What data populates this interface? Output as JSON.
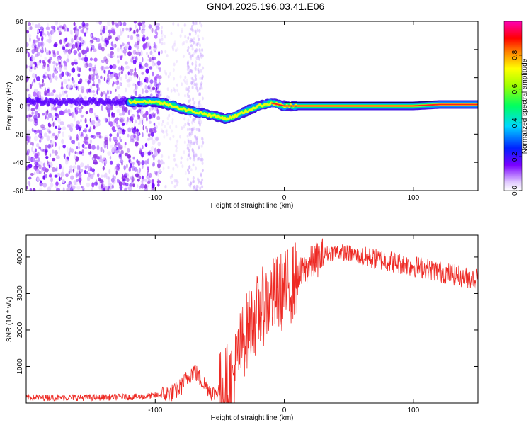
{
  "figure": {
    "title": "GN04.2025.196.03.41.E06"
  },
  "colors": {
    "snr_line": "#ee2a24",
    "scatter_fill": "#8a2be2",
    "ridge_core": "#ff2020",
    "colormap": [
      "#ffffff",
      "#d9b6ff",
      "#7a00ff",
      "#0020ff",
      "#00c8ff",
      "#00ff60",
      "#ffff00",
      "#ff8000",
      "#ff0000",
      "#ff00c8"
    ]
  },
  "chart_data": [
    {
      "type": "heatmap",
      "title": "",
      "xlabel": "Height of straight line (km)",
      "ylabel": "Frequency (Hz)",
      "xlim": [
        -200,
        150
      ],
      "ylim": [
        -60,
        60
      ],
      "x_ticks": [
        -100,
        0,
        100
      ],
      "y_ticks": [
        -60,
        -40,
        -20,
        0,
        20,
        40,
        60
      ],
      "grid": false,
      "ridge_x": [
        -120,
        -110,
        -100,
        -95,
        -90,
        -85,
        -80,
        -75,
        -70,
        -65,
        -60,
        -55,
        -50,
        -45,
        -40,
        -35,
        -30,
        -25,
        -20,
        -15,
        -10,
        -5,
        0,
        10,
        20,
        40,
        60,
        80,
        100,
        120,
        150
      ],
      "ridge_freq": [
        3,
        3,
        3,
        2,
        1,
        0,
        -2,
        -3,
        -4,
        -5,
        -6,
        -7,
        -8,
        -9,
        -8,
        -6,
        -4,
        -2,
        0,
        1,
        2,
        1,
        0,
        0,
        0,
        0,
        0,
        0,
        0,
        1,
        1
      ],
      "colorbar": {
        "label": "Normalized spectral amplitude",
        "range": [
          0,
          1
        ],
        "ticks": [
          0.0,
          0.2,
          0.4,
          0.6,
          0.8
        ]
      }
    },
    {
      "type": "line",
      "title": "",
      "xlabel": "Height of straight line (km)",
      "ylabel": "SNR (10 * v/v)",
      "xlim": [
        -200,
        150
      ],
      "ylim": [
        0,
        4600
      ],
      "x_ticks": [
        -100,
        0,
        100
      ],
      "y_ticks": [
        1000,
        2000,
        3000,
        4000
      ],
      "grid": false,
      "series": [
        {
          "x": [
            -200,
            -150,
            -110,
            -95,
            -85,
            -80,
            -75,
            -70,
            -65,
            -60,
            -55,
            -50,
            -45,
            -40,
            -35,
            -30,
            -25,
            -20,
            -15,
            -10,
            -5,
            0,
            10,
            20,
            30,
            40,
            50,
            60,
            80,
            100,
            120,
            140,
            150
          ],
          "y": [
            150,
            150,
            170,
            220,
            300,
            450,
            700,
            900,
            650,
            450,
            250,
            350,
            550,
            650,
            1400,
            1900,
            2200,
            2500,
            2700,
            2900,
            3000,
            3100,
            3400,
            3800,
            4050,
            4150,
            4100,
            4000,
            3900,
            3750,
            3600,
            3450,
            3400
          ]
        }
      ]
    }
  ]
}
